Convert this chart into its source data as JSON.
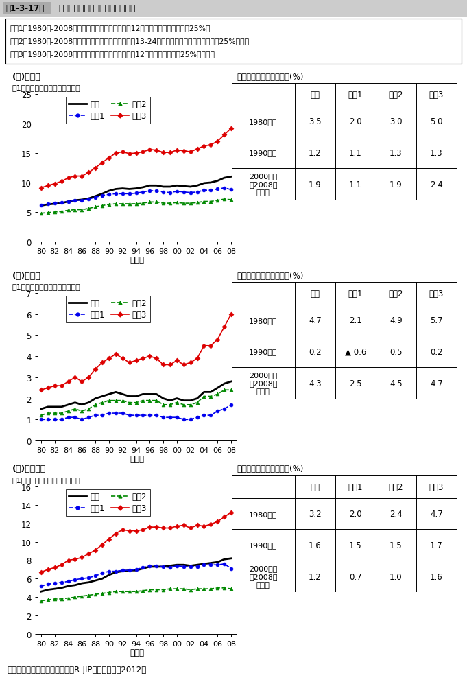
{
  "title_box": "第1-3-17図",
  "title_text": "地域別に見た実質付加価値生産額",
  "note_box": [
    "地域1：1980年-2008年までの全産業の変化率下位12の都道府県の平均（下位25%）",
    "地域2：1980年-2008年までの全産業の変化率が下位13-24の都道府県の平均（上位、下位25%以外）",
    "地域3：1980年-2008年までの全産業の変化率が上位12の都道府県（上位25%）の平均"
  ],
  "source": "資料：（独）経済産業研究所「R-JIPデータベース2012」",
  "years": [
    1980,
    1981,
    1982,
    1983,
    1984,
    1985,
    1986,
    1987,
    1988,
    1989,
    1990,
    1991,
    1992,
    1993,
    1994,
    1995,
    1996,
    1997,
    1998,
    1999,
    2000,
    2001,
    2002,
    2003,
    2004,
    2005,
    2006,
    2007,
    2008
  ],
  "sections": [
    {
      "title": "(１)全産業",
      "ylabel": "（1都道府県当たり平均、兆円）",
      "ylim": [
        0,
        25
      ],
      "yticks": [
        0,
        5,
        10,
        15,
        20,
        25
      ],
      "table_title": "年代別に見た平均成長率(%)",
      "rows": [
        "1980年代",
        "1990年代",
        "2000年代\n（2008年\nまで）"
      ],
      "cols": [
        "全国",
        "地域1",
        "地域2",
        "地域3"
      ],
      "table_data": [
        [
          "3.5",
          "2.0",
          "3.0",
          "5.0"
        ],
        [
          "1.2",
          "1.1",
          "1.3",
          "1.3"
        ],
        [
          "1.9",
          "1.1",
          "1.9",
          "2.4"
        ]
      ],
      "lines": {
        "全国": [
          6.1,
          6.3,
          6.4,
          6.5,
          6.8,
          7.0,
          7.1,
          7.3,
          7.7,
          8.1,
          8.6,
          8.9,
          9.0,
          8.9,
          9.0,
          9.2,
          9.5,
          9.5,
          9.3,
          9.3,
          9.5,
          9.4,
          9.3,
          9.5,
          9.9,
          10.0,
          10.3,
          10.8,
          11.0
        ],
        "地域1": [
          6.2,
          6.4,
          6.5,
          6.6,
          6.8,
          7.0,
          7.0,
          7.2,
          7.5,
          7.8,
          8.0,
          8.1,
          8.1,
          8.1,
          8.2,
          8.4,
          8.6,
          8.6,
          8.4,
          8.3,
          8.5,
          8.4,
          8.3,
          8.4,
          8.7,
          8.7,
          8.9,
          9.1,
          8.8
        ],
        "地域2": [
          4.8,
          4.9,
          5.0,
          5.1,
          5.3,
          5.4,
          5.4,
          5.6,
          5.9,
          6.1,
          6.3,
          6.4,
          6.4,
          6.4,
          6.4,
          6.5,
          6.7,
          6.7,
          6.5,
          6.5,
          6.6,
          6.5,
          6.5,
          6.6,
          6.8,
          6.8,
          7.0,
          7.2,
          7.1
        ],
        "地域3": [
          9.1,
          9.5,
          9.8,
          10.2,
          10.8,
          11.1,
          11.1,
          11.7,
          12.5,
          13.4,
          14.2,
          15.0,
          15.2,
          14.9,
          15.0,
          15.2,
          15.6,
          15.5,
          15.1,
          15.1,
          15.5,
          15.4,
          15.2,
          15.7,
          16.2,
          16.4,
          17.0,
          18.1,
          19.2
        ]
      }
    },
    {
      "title": "(２)製造業",
      "ylabel": "（1都道府県当たり平均、兆円）",
      "ylim": [
        0,
        7
      ],
      "yticks": [
        0,
        1,
        2,
        3,
        4,
        5,
        6,
        7
      ],
      "table_title": "年代別に見た平均成長率(%)",
      "rows": [
        "1980年代",
        "1990年代",
        "2000年代\n（2008年\nまで）"
      ],
      "cols": [
        "全国",
        "地域1",
        "地域2",
        "地域3"
      ],
      "table_data": [
        [
          "4.7",
          "2.1",
          "4.9",
          "5.7"
        ],
        [
          "0.2",
          "▲ 0.6",
          "0.5",
          "0.2"
        ],
        [
          "4.3",
          "2.5",
          "4.5",
          "4.7"
        ]
      ],
      "lines": {
        "全国": [
          1.5,
          1.6,
          1.6,
          1.6,
          1.7,
          1.8,
          1.7,
          1.8,
          2.0,
          2.1,
          2.2,
          2.3,
          2.2,
          2.1,
          2.1,
          2.2,
          2.2,
          2.2,
          2.0,
          1.9,
          2.0,
          1.9,
          1.9,
          2.0,
          2.3,
          2.3,
          2.5,
          2.7,
          2.8
        ],
        "地域1": [
          1.0,
          1.0,
          1.0,
          1.0,
          1.1,
          1.1,
          1.0,
          1.1,
          1.2,
          1.2,
          1.3,
          1.3,
          1.3,
          1.2,
          1.2,
          1.2,
          1.2,
          1.2,
          1.1,
          1.1,
          1.1,
          1.0,
          1.0,
          1.1,
          1.2,
          1.2,
          1.4,
          1.5,
          1.7
        ],
        "地域2": [
          1.2,
          1.3,
          1.3,
          1.3,
          1.4,
          1.5,
          1.4,
          1.5,
          1.7,
          1.8,
          1.9,
          1.9,
          1.9,
          1.8,
          1.8,
          1.9,
          1.9,
          1.9,
          1.7,
          1.7,
          1.8,
          1.7,
          1.7,
          1.8,
          2.1,
          2.1,
          2.2,
          2.4,
          2.4
        ],
        "地域3": [
          2.4,
          2.5,
          2.6,
          2.6,
          2.8,
          3.0,
          2.8,
          3.0,
          3.4,
          3.7,
          3.9,
          4.1,
          3.9,
          3.7,
          3.8,
          3.9,
          4.0,
          3.9,
          3.6,
          3.6,
          3.8,
          3.6,
          3.7,
          3.9,
          4.5,
          4.5,
          4.8,
          5.4,
          6.0
        ]
      }
    },
    {
      "title": "(３)非製造業",
      "ylabel": "（1都道府県当たり平均、兆円）",
      "ylim": [
        0,
        16
      ],
      "yticks": [
        0,
        2,
        4,
        6,
        8,
        10,
        12,
        14,
        16
      ],
      "table_title": "年代別に見た平均成長率(%)",
      "rows": [
        "1980年代",
        "1990年代",
        "2000年代\n（2008年\nまで）"
      ],
      "cols": [
        "全国",
        "地域1",
        "地域2",
        "地域3"
      ],
      "table_data": [
        [
          "3.2",
          "2.0",
          "2.4",
          "4.7"
        ],
        [
          "1.6",
          "1.5",
          "1.5",
          "1.7"
        ],
        [
          "1.2",
          "0.7",
          "1.0",
          "1.6"
        ]
      ],
      "lines": {
        "全国": [
          4.6,
          4.8,
          4.9,
          5.0,
          5.2,
          5.3,
          5.5,
          5.6,
          5.8,
          6.0,
          6.4,
          6.7,
          6.8,
          6.9,
          6.9,
          7.1,
          7.3,
          7.3,
          7.3,
          7.4,
          7.5,
          7.5,
          7.4,
          7.5,
          7.6,
          7.7,
          7.8,
          8.1,
          8.2
        ],
        "地域1": [
          5.2,
          5.4,
          5.5,
          5.6,
          5.7,
          5.9,
          6.0,
          6.1,
          6.3,
          6.6,
          6.8,
          6.8,
          6.9,
          6.9,
          7.0,
          7.2,
          7.4,
          7.4,
          7.3,
          7.2,
          7.4,
          7.3,
          7.3,
          7.3,
          7.5,
          7.5,
          7.5,
          7.6,
          7.1
        ],
        "地域2": [
          3.6,
          3.7,
          3.8,
          3.8,
          3.9,
          4.0,
          4.1,
          4.2,
          4.3,
          4.4,
          4.5,
          4.6,
          4.6,
          4.6,
          4.6,
          4.7,
          4.8,
          4.8,
          4.8,
          4.9,
          4.9,
          4.9,
          4.8,
          4.9,
          4.9,
          4.9,
          5.0,
          5.0,
          4.9
        ],
        "地域3": [
          6.7,
          7.0,
          7.2,
          7.5,
          8.0,
          8.1,
          8.3,
          8.7,
          9.1,
          9.7,
          10.3,
          10.9,
          11.3,
          11.2,
          11.2,
          11.3,
          11.6,
          11.6,
          11.5,
          11.5,
          11.7,
          11.8,
          11.5,
          11.8,
          11.7,
          11.9,
          12.2,
          12.7,
          13.2
        ]
      }
    }
  ],
  "line_styles": {
    "全国": {
      "color": "#000000",
      "linestyle": "-",
      "marker": "None",
      "linewidth": 2.0
    },
    "地域1": {
      "color": "#0000EE",
      "linestyle": "--",
      "marker": "o",
      "linewidth": 1.2,
      "markersize": 3.5
    },
    "地域2": {
      "color": "#008800",
      "linestyle": "--",
      "marker": "^",
      "linewidth": 1.2,
      "markersize": 3.5
    },
    "地域3": {
      "color": "#DD0000",
      "linestyle": "-",
      "marker": "D",
      "linewidth": 1.2,
      "markersize": 3.5
    }
  },
  "xtick_labels": [
    "80",
    "82",
    "84",
    "86",
    "88",
    "90",
    "92",
    "94",
    "96",
    "98",
    "00",
    "02",
    "04",
    "06",
    "08"
  ],
  "xtick_positions": [
    1980,
    1982,
    1984,
    1986,
    1988,
    1990,
    1992,
    1994,
    1996,
    1998,
    2000,
    2002,
    2004,
    2006,
    2008
  ]
}
